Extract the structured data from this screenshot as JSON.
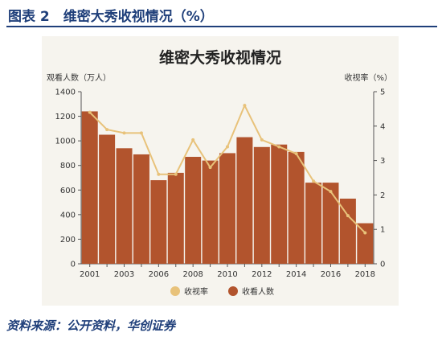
{
  "figure_label": "图表 2　维密大秀收视情况（%）",
  "source_note": "资料来源：公开资料，华创证券",
  "chart_data": {
    "type": "bar",
    "title": "维密大秀收视情况",
    "left_axis_label": "观看人数（万人）",
    "right_axis_label": "收视率（%）",
    "left_ylim": [
      0,
      1400
    ],
    "left_ticks": [
      0,
      200,
      400,
      600,
      800,
      1000,
      1200,
      1400
    ],
    "right_ylim": [
      0,
      5
    ],
    "right_ticks": [
      0,
      1,
      2,
      3,
      4,
      5
    ],
    "x": [
      2001,
      2002,
      2003,
      2004,
      2006,
      2007,
      2008,
      2009,
      2010,
      2011,
      2012,
      2013,
      2014,
      2015,
      2016,
      2017,
      2018
    ],
    "x_tick_labels": [
      "2001",
      "2003",
      "2006",
      "2008",
      "2010",
      "2012",
      "2014",
      "2016",
      "2018"
    ],
    "series": [
      {
        "name": "收看人数",
        "axis": "left",
        "mark": "bar",
        "color": "#b2542d",
        "values": [
          1240,
          1050,
          940,
          890,
          680,
          740,
          870,
          840,
          900,
          1030,
          950,
          970,
          910,
          660,
          660,
          530,
          330
        ]
      },
      {
        "name": "收视率",
        "axis": "right",
        "mark": "line",
        "color": "#e8c27a",
        "values": [
          4.4,
          3.9,
          3.8,
          3.8,
          2.6,
          2.6,
          3.6,
          2.8,
          3.4,
          4.6,
          3.6,
          3.4,
          3.2,
          2.4,
          2.1,
          1.4,
          0.9
        ]
      }
    ],
    "legend": [
      "收视率",
      "收看人数"
    ],
    "legend_position": "bottom-center",
    "grid": false
  }
}
